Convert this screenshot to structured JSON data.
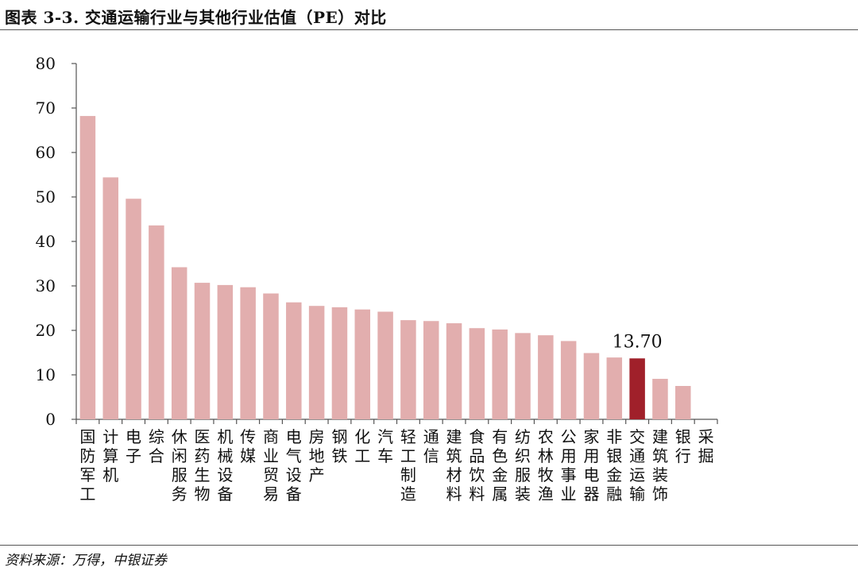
{
  "header": {
    "title": "图表 3-3. 交通运输行业与其他行业估值（PE）对比"
  },
  "footer": {
    "source": "资料来源：万得，中银证券"
  },
  "colors": {
    "bar": "#e2aeae",
    "highlight": "#a0202a",
    "axis": "#555555"
  },
  "chart_data": {
    "type": "bar",
    "title": "",
    "xlabel": "",
    "ylabel": "",
    "ylim": [
      0,
      80
    ],
    "yticks": [
      0,
      10,
      20,
      30,
      40,
      50,
      60,
      70,
      80
    ],
    "grid": false,
    "legend": "none",
    "categories": [
      "国防军工",
      "计算机",
      "电子",
      "综合",
      "休闲服务",
      "医药生物",
      "机械设备",
      "传媒",
      "商业贸易",
      "电气设备",
      "房地产",
      "钢铁",
      "化工",
      "汽车",
      "轻工制造",
      "通信",
      "建筑材料",
      "食品饮料",
      "有色金属",
      "纺织服装",
      "农林牧渔",
      "公用事业",
      "家用电器",
      "非银金融",
      "交通运输",
      "建筑装饰",
      "银行",
      "采掘"
    ],
    "values": [
      68.2,
      54.4,
      49.6,
      43.6,
      34.2,
      30.7,
      30.2,
      29.7,
      28.3,
      26.3,
      25.5,
      25.2,
      24.7,
      24.2,
      22.3,
      22.1,
      21.6,
      20.5,
      20.2,
      19.4,
      18.9,
      17.6,
      14.9,
      13.9,
      13.7,
      9.1,
      7.5,
      null
    ],
    "highlight_category": "交通运输",
    "annotations": [
      {
        "category": "交通运输",
        "text": "13.70"
      }
    ]
  }
}
